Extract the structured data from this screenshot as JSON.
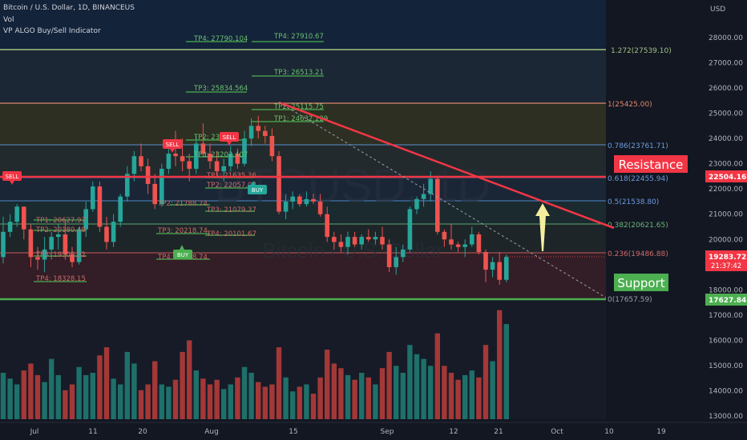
{
  "header": {
    "symbol_line": "Bitcoin / U.S. Dollar, 1D, BINANCEUS",
    "vol_label": "Vol",
    "indicator_label": "VP ALGO Buy/Sell Indicator"
  },
  "watermark": {
    "symbol": "BTCUSD, 1D",
    "name": "Bitcoin / U.S. Dollar"
  },
  "price_axis": {
    "currency": "USD",
    "ticks": [
      "28000.00",
      "27000.00",
      "26000.00",
      "25000.00",
      "24000.00",
      "23000.00",
      "22000.00",
      "21000.00",
      "20000.00",
      "19000.00",
      "18000.00",
      "17000.00",
      "16000.00",
      "15000.00",
      "14000.00",
      "13000.00"
    ]
  },
  "time_axis": {
    "ticks": [
      "Jul",
      "11",
      "20",
      "Aug",
      "15",
      "Sep",
      "12",
      "21",
      "Oct",
      "10",
      "19"
    ]
  },
  "price_tags": {
    "resistance": "22504.16",
    "current_price": "19283.72",
    "countdown": "21:37:42",
    "support": "17627.84"
  },
  "fib_labels": [
    "1.272(27539.10)",
    "1(25425.00)",
    "0.786(23761.71)",
    "0.618(22455.94)",
    "0.5(21538.80)",
    "0.382(20621.65)",
    "0.236(19486.88)",
    "0(17657.59)"
  ],
  "annotations": {
    "resistance": "Resistance",
    "support": "Support"
  },
  "signals": {
    "sell": "SELL",
    "buy": "BUY"
  },
  "tp_labels": {
    "group1": [
      "TP1: 20627.97",
      "TP2: 20180.49",
      "TP3: 19309.32",
      "TP4: 18328.15"
    ],
    "group2": [
      "TP1: 21635.36",
      "TP2: 22057.07",
      "TP3: 21079.37",
      "TP4: 20101.67"
    ],
    "group3": [
      "TP2: 21788.74",
      "TP3: 20218.74",
      "TP4: 19148.74"
    ],
    "group4": [
      "TP2: 23134",
      "TP3: 23202.407",
      "TP3: 25834.564",
      "TP4: 27790.104"
    ],
    "group5": [
      "TP1: 24632.229",
      "TP2: 25115.75",
      "TP3: 26513.21",
      "TP4: 27910.67"
    ]
  },
  "colors": {
    "bg": "#131722",
    "up": "#26a69a",
    "down": "#ef5350",
    "resistance": "#f23645",
    "support": "#4caf50",
    "tp_line": "#4caf50",
    "tp_text": "#4caf50",
    "arrow": "#f5ee9e",
    "text": "#b2b5be"
  },
  "chart_data": {
    "type": "candlestick",
    "series": [
      {
        "name": "BTCUSD",
        "ohlc": [
          [
            19300,
            20900,
            19050,
            20300
          ],
          [
            20300,
            21000,
            20100,
            20700
          ],
          [
            20700,
            21400,
            20500,
            21300
          ],
          [
            21300,
            21300,
            20000,
            20400
          ],
          [
            20400,
            20600,
            18900,
            19300
          ],
          [
            19300,
            19700,
            18800,
            19200
          ],
          [
            19200,
            20100,
            18700,
            19600
          ],
          [
            19600,
            20300,
            19200,
            20100
          ],
          [
            20100,
            20600,
            19600,
            20200
          ],
          [
            20200,
            20800,
            19200,
            19400
          ],
          [
            19400,
            19700,
            18900,
            19100
          ],
          [
            19100,
            20500,
            19000,
            20400
          ],
          [
            20400,
            21500,
            20100,
            21200
          ],
          [
            21200,
            22300,
            21100,
            22100
          ],
          [
            22100,
            22300,
            20300,
            20500
          ],
          [
            20500,
            20900,
            19600,
            19900
          ],
          [
            19900,
            21000,
            19700,
            20700
          ],
          [
            20700,
            21800,
            20500,
            21700
          ],
          [
            21700,
            22900,
            21500,
            22600
          ],
          [
            22600,
            23500,
            22300,
            23300
          ],
          [
            23300,
            23800,
            22700,
            22900
          ],
          [
            22900,
            23200,
            21800,
            22200
          ],
          [
            22200,
            22600,
            21200,
            21400
          ],
          [
            21400,
            23000,
            21300,
            22800
          ],
          [
            22800,
            23600,
            22600,
            23400
          ],
          [
            23400,
            24300,
            22900,
            23300
          ],
          [
            23300,
            24000,
            22700,
            23100
          ],
          [
            23100,
            23400,
            22300,
            22800
          ],
          [
            22800,
            24100,
            22600,
            23800
          ],
          [
            23800,
            24600,
            23300,
            23400
          ],
          [
            23400,
            23800,
            22800,
            23100
          ],
          [
            23100,
            23500,
            22500,
            22700
          ],
          [
            22700,
            23200,
            22300,
            22900
          ],
          [
            22900,
            23700,
            22700,
            23400
          ],
          [
            23400,
            23600,
            22800,
            23000
          ],
          [
            23000,
            24300,
            22900,
            24000
          ],
          [
            24000,
            24800,
            23700,
            24500
          ],
          [
            24500,
            24900,
            24000,
            24300
          ],
          [
            24300,
            24500,
            23800,
            24100
          ],
          [
            24100,
            24400,
            23100,
            23300
          ],
          [
            23300,
            23500,
            21000,
            21100
          ],
          [
            21100,
            21800,
            20800,
            21500
          ],
          [
            21500,
            21900,
            21200,
            21700
          ],
          [
            21700,
            21800,
            21300,
            21400
          ],
          [
            21400,
            21900,
            21300,
            21600
          ],
          [
            21600,
            21800,
            21400,
            21500
          ],
          [
            21500,
            21800,
            20900,
            21000
          ],
          [
            21000,
            21300,
            19900,
            20100
          ],
          [
            20100,
            20300,
            19600,
            19900
          ],
          [
            19900,
            20200,
            19500,
            19700
          ],
          [
            19700,
            20300,
            19400,
            20100
          ],
          [
            20100,
            20300,
            19700,
            19800
          ],
          [
            19800,
            20200,
            19600,
            20100
          ],
          [
            20100,
            20400,
            19900,
            20000
          ],
          [
            20000,
            20300,
            19800,
            20100
          ],
          [
            20100,
            20500,
            19600,
            19800
          ],
          [
            19800,
            20000,
            18700,
            18900
          ],
          [
            18900,
            19700,
            18600,
            19300
          ],
          [
            19300,
            19800,
            19100,
            19600
          ],
          [
            19600,
            21300,
            19500,
            21200
          ],
          [
            21200,
            21700,
            21000,
            21600
          ],
          [
            21600,
            22200,
            21300,
            21800
          ],
          [
            21800,
            22700,
            21500,
            22400
          ],
          [
            22400,
            22500,
            20200,
            20300
          ],
          [
            20300,
            20400,
            19700,
            20000
          ],
          [
            20000,
            20600,
            19600,
            19800
          ],
          [
            19800,
            19900,
            19500,
            19700
          ],
          [
            19700,
            20000,
            19300,
            19800
          ],
          [
            19800,
            20500,
            19700,
            20200
          ],
          [
            20200,
            20300,
            19400,
            19500
          ],
          [
            19500,
            19600,
            18300,
            18800
          ],
          [
            18800,
            19300,
            18500,
            19100
          ],
          [
            19100,
            19500,
            18200,
            18400
          ],
          [
            18400,
            19400,
            18300,
            19300
          ]
        ]
      },
      {
        "name": "Vol",
        "values": [
          40,
          35,
          30,
          42,
          48,
          38,
          32,
          52,
          38,
          25,
          30,
          45,
          38,
          40,
          55,
          62,
          35,
          30,
          58,
          48,
          25,
          30,
          50,
          30,
          28,
          34,
          58,
          68,
          42,
          35,
          30,
          34,
          26,
          30,
          36,
          45,
          40,
          32,
          28,
          30,
          62,
          36,
          24,
          28,
          30,
          22,
          36,
          60,
          48,
          44,
          38,
          34,
          40,
          36,
          30,
          44,
          58,
          46,
          40,
          64,
          56,
          52,
          46,
          74,
          46,
          40,
          34,
          38,
          42,
          36,
          64,
          50,
          94,
          82
        ]
      }
    ],
    "resistance": 22504.16,
    "support": 17627.84,
    "current_price": 19283.72,
    "fib_levels": [
      {
        "label": "1.272(27539.10)",
        "value": 27539.1
      },
      {
        "label": "1(25425.00)",
        "value": 25425.0
      },
      {
        "label": "0.786(23761.71)",
        "value": 23761.71
      },
      {
        "label": "0.618(22455.94)",
        "value": 22455.94
      },
      {
        "label": "0.5(21538.80)",
        "value": 21538.8
      },
      {
        "label": "0.382(20621.65)",
        "value": 20621.65
      },
      {
        "label": "0.236(19486.88)",
        "value": 19486.88
      },
      {
        "label": "0(17657.59)",
        "value": 17657.59
      }
    ],
    "ylim": [
      12800,
      29400
    ]
  }
}
